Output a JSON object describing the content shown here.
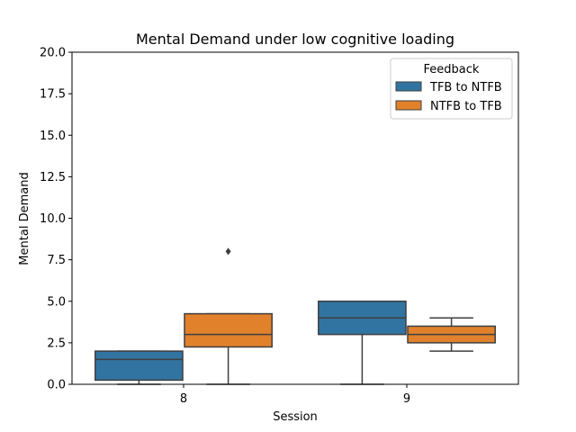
{
  "chart_data": {
    "type": "boxplot",
    "title": "Mental Demand under low cognitive loading",
    "xlabel": "Session",
    "ylabel": "Mental Demand",
    "categories": [
      "8",
      "9"
    ],
    "ylim": [
      0,
      20
    ],
    "yticks": [
      "0.0",
      "2.5",
      "5.0",
      "7.5",
      "10.0",
      "12.5",
      "15.0",
      "17.5",
      "20.0"
    ],
    "grid": false,
    "legend": {
      "title": "Feedback",
      "position": "top-right"
    },
    "series": [
      {
        "name": "TFB to NTFB",
        "color": "#3274a1",
        "boxes": [
          {
            "category": "8",
            "whisker_low": 0.0,
            "q1": 0.25,
            "median": 1.5,
            "q3": 2.0,
            "whisker_high": 2.0,
            "outliers": []
          },
          {
            "category": "9",
            "whisker_low": 0.0,
            "q1": 3.0,
            "median": 4.0,
            "q3": 5.0,
            "whisker_high": 5.0,
            "outliers": []
          }
        ]
      },
      {
        "name": "NTFB to TFB",
        "color": "#e1812c",
        "boxes": [
          {
            "category": "8",
            "whisker_low": 0.0,
            "q1": 2.25,
            "median": 3.0,
            "q3": 4.25,
            "whisker_high": 4.25,
            "outliers": [
              8.0
            ]
          },
          {
            "category": "9",
            "whisker_low": 2.0,
            "q1": 2.5,
            "median": 3.0,
            "q3": 3.5,
            "whisker_high": 4.0,
            "outliers": []
          }
        ]
      }
    ]
  }
}
